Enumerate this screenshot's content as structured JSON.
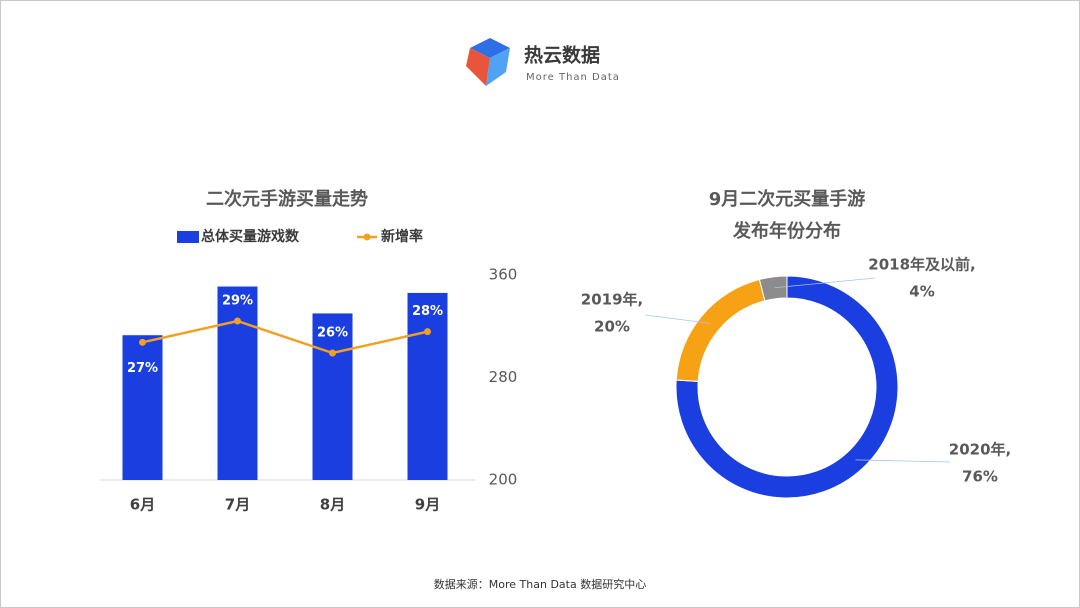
{
  "header": {
    "logo_text": "热云数据",
    "logo_subtext": "More Than Data"
  },
  "chart_data": [
    {
      "type": "bar",
      "title": "二次元手游买量走势",
      "categories": [
        "6月",
        "7月",
        "8月",
        "9月"
      ],
      "series": [
        {
          "name": "总体买量游戏数",
          "type": "bar",
          "color": "#1a3ee0",
          "axis": "y2",
          "values": [
            313,
            351,
            330,
            346
          ]
        },
        {
          "name": "新增率",
          "type": "line",
          "color": "#f0a023",
          "values": [
            27,
            29,
            26,
            28
          ],
          "value_labels": [
            "27%",
            "29%",
            "26%",
            "28%"
          ]
        }
      ],
      "y2lim": [
        200,
        360
      ],
      "y2ticks": [
        200,
        280,
        360
      ],
      "legend": "top"
    },
    {
      "type": "pie",
      "donut": true,
      "title": "9月二次元买量手游",
      "subtitle": "发布年份分布",
      "categories": [
        "2020年,",
        "2019年,",
        "2018年及以前,"
      ],
      "values": [
        76,
        20,
        4
      ],
      "value_labels": [
        "76%",
        "20%",
        "4%"
      ],
      "colors": [
        "#1a3ee0",
        "#f7a114",
        "#8c8c8c"
      ]
    }
  ],
  "footer": {
    "source": "数据来源：More Than Data 数据研究中心"
  }
}
